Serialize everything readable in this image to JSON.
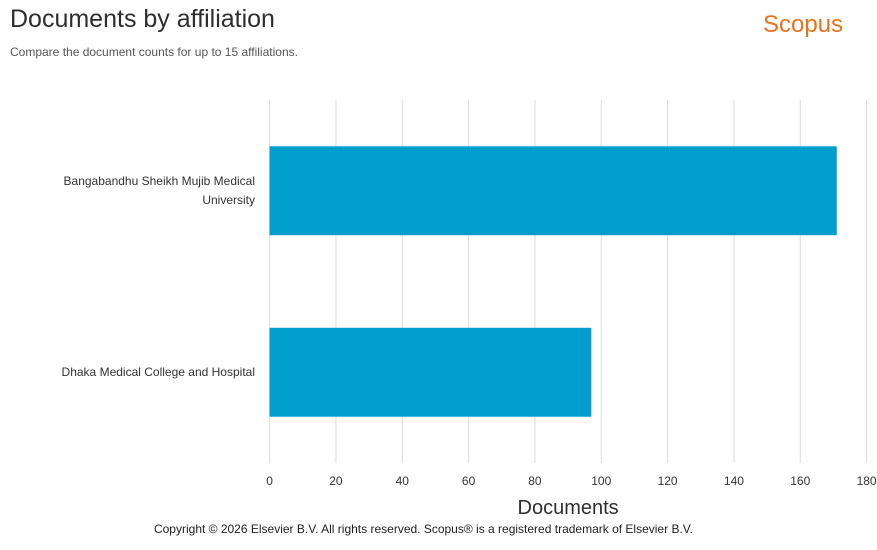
{
  "header": {
    "title": "Documents by affiliation",
    "subtitle": "Compare the document counts for up to 15 affiliations.",
    "logo": "Scopus"
  },
  "footer": "Copyright © 2026 Elsevier B.V. All rights reserved. Scopus® is a registered trademark of Elsevier B.V.",
  "chart_data": {
    "type": "bar",
    "orientation": "horizontal",
    "categories": [
      "Bangabandhu Sheikh Mujib Medical University",
      "Dhaka Medical College and Hospital"
    ],
    "values": [
      171,
      97
    ],
    "xlabel": "Documents",
    "ylabel": "",
    "xlim": [
      0,
      180
    ],
    "xticks": [
      "0",
      "20",
      "40",
      "60",
      "80",
      "100",
      "120",
      "140",
      "160",
      "180"
    ],
    "grid": true,
    "bar_color": "#009ecc"
  }
}
